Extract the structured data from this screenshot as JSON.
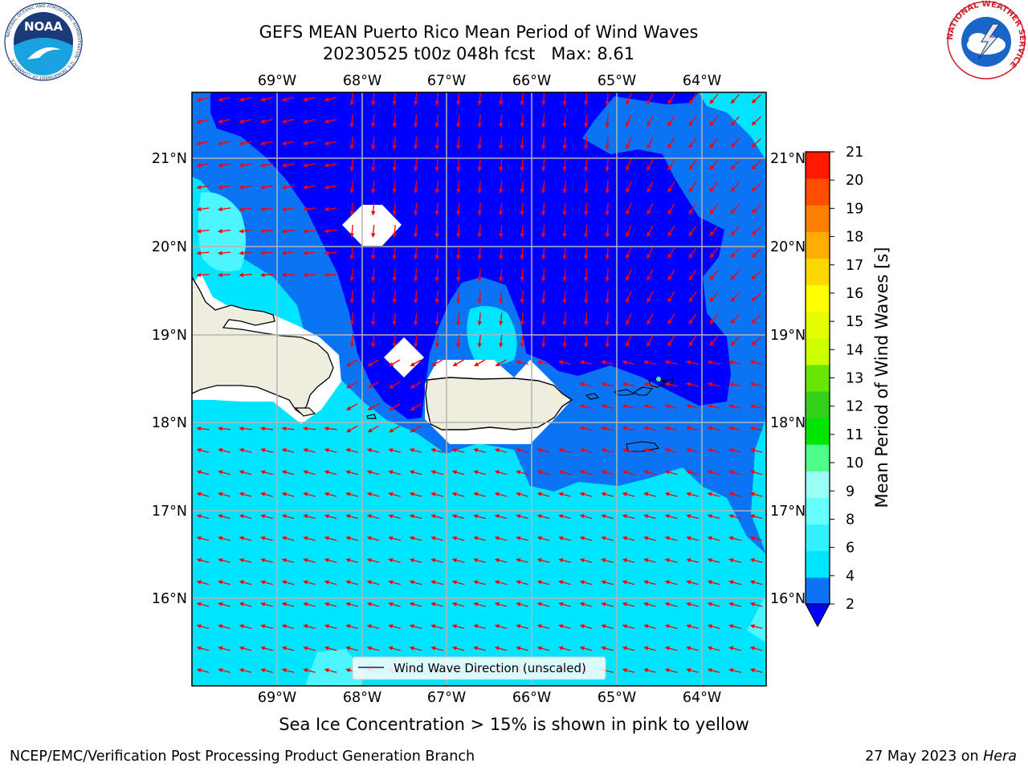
{
  "title": {
    "line1": "GEFS MEAN Puerto Rico Mean Period of Wind Waves",
    "line2": "20230525 t00z 048h fcst   Max: 8.61"
  },
  "map": {
    "lon_labels": [
      "69°W",
      "68°W",
      "67°W",
      "66°W",
      "65°W",
      "64°W"
    ],
    "lat_labels": [
      "21°N",
      "20°N",
      "19°N",
      "18°N",
      "17°N",
      "16°N"
    ],
    "legend_label": "Wind Wave Direction (unscaled)",
    "arrow_color": "#ff0000",
    "land_color": "#efedde"
  },
  "colorbar": {
    "label": "Mean Period of Wind Waves [s]",
    "ticks": [
      "2",
      "4",
      "6",
      "8",
      "9",
      "10",
      "11",
      "12",
      "13",
      "14",
      "15",
      "16",
      "17",
      "18",
      "19",
      "20",
      "21"
    ],
    "colors": [
      "#0a74f5",
      "#00e5ff",
      "#33f2ff",
      "#66ffff",
      "#99fff5",
      "#4dff8a",
      "#00e600",
      "#33d11a",
      "#66e600",
      "#ccff00",
      "#e6ff00",
      "#ffff00",
      "#ffd700",
      "#ffae00",
      "#ff8000",
      "#ff4d00",
      "#ff1a00"
    ],
    "under_color": "#0000ff"
  },
  "subtitle": "Sea Ice Concentration > 15% is shown in pink to yellow",
  "footer": {
    "left": "NCEP/EMC/Verification Post Processing Product Generation Branch",
    "right_prefix": "27 May 2023 on ",
    "right_machine": "Hera"
  },
  "logos": {
    "left": "NOAA",
    "left_ring": "NATIONAL OCEANIC AND ATMOSPHERIC ADMINISTRATION · U.S. DEPARTMENT OF COMMERCE",
    "right_ring": "NATIONAL WEATHER SERVICE"
  }
}
